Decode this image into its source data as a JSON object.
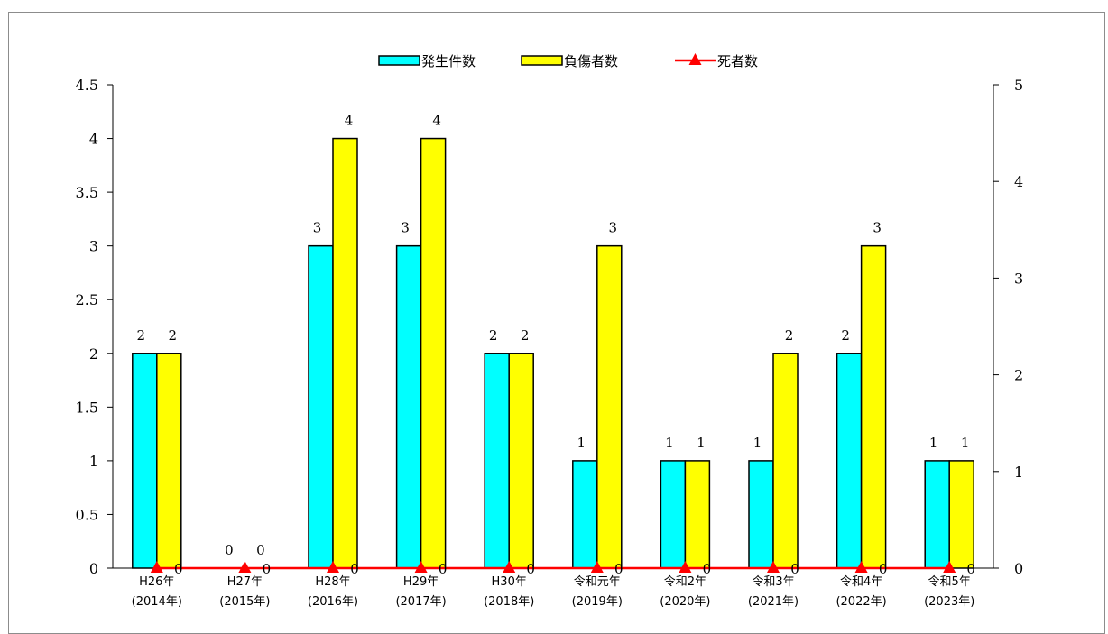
{
  "chart_data": {
    "type": "bar",
    "categories": [
      [
        "H26年",
        "(2014年)"
      ],
      [
        "H27年",
        "(2015年)"
      ],
      [
        "H28年",
        "(2016年)"
      ],
      [
        "H29年",
        "(2017年)"
      ],
      [
        "H30年",
        "(2018年)"
      ],
      [
        "令和元年",
        "(2019年)"
      ],
      [
        "令和2年",
        "(2020年)"
      ],
      [
        "令和3年",
        "(2021年)"
      ],
      [
        "令和4年",
        "(2022年)"
      ],
      [
        "令和5年",
        "(2023年)"
      ]
    ],
    "series": [
      {
        "name": "発生件数",
        "type": "bar",
        "axis": "left",
        "color": "#00ffff",
        "values": [
          2,
          0,
          3,
          3,
          2,
          1,
          1,
          1,
          2,
          1
        ]
      },
      {
        "name": "負傷者数",
        "type": "bar",
        "axis": "left",
        "color": "#ffff00",
        "values": [
          2,
          0,
          4,
          4,
          2,
          3,
          1,
          2,
          3,
          1
        ]
      },
      {
        "name": "死者数",
        "type": "line",
        "axis": "right",
        "color": "#ff0000",
        "marker": "triangle",
        "values": [
          0,
          0,
          0,
          0,
          0,
          0,
          0,
          0,
          0,
          0
        ]
      }
    ],
    "y_left": {
      "min": 0,
      "max": 4.5,
      "step": 0.5,
      "ticks": [
        "0",
        "0.5",
        "1",
        "1.5",
        "2",
        "2.5",
        "3",
        "3.5",
        "4",
        "4.5"
      ]
    },
    "y_right": {
      "min": 0,
      "max": 5,
      "step": 1,
      "ticks": [
        "0",
        "1",
        "2",
        "3",
        "4",
        "5"
      ]
    },
    "legend_position": "top-center",
    "grid": false
  }
}
